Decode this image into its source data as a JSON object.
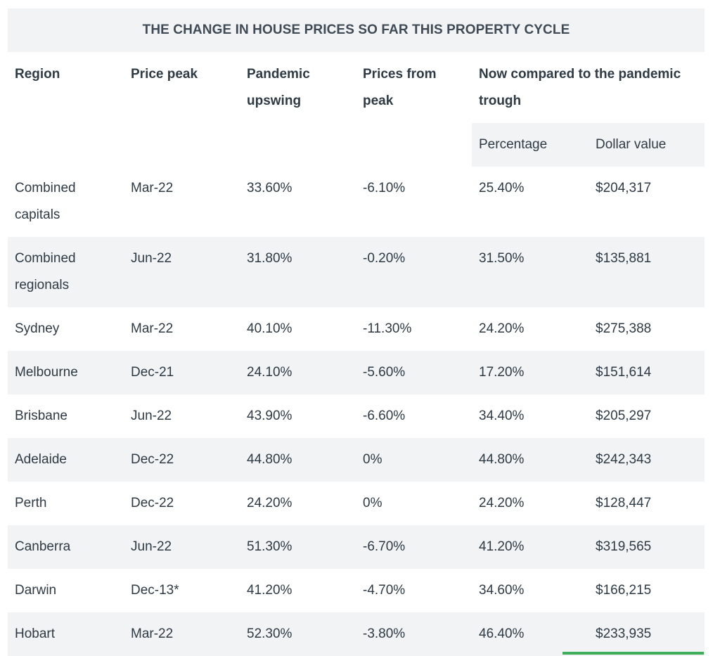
{
  "table_title": "THE CHANGE IN HOUSE PRICES SO FAR THIS PROPERTY CYCLE",
  "headers": {
    "region": "Region",
    "price_peak": "Price peak",
    "pandemic_upswing": "Pandemic upswing",
    "prices_from_peak": "Prices from peak",
    "now_compared": "Now compared to the pandemic trough",
    "percentage": "Percentage",
    "dollar_value": "Dollar value"
  },
  "rows": [
    {
      "region": "Combined capitals",
      "price_peak": "Mar-22",
      "upswing": "33.60%",
      "from_peak": "-6.10%",
      "percentage": "25.40%",
      "dollar": "$204,317"
    },
    {
      "region": "Combined regionals",
      "price_peak": "Jun-22",
      "upswing": "31.80%",
      "from_peak": "-0.20%",
      "percentage": "31.50%",
      "dollar": "$135,881"
    },
    {
      "region": "Sydney",
      "price_peak": "Mar-22",
      "upswing": "40.10%",
      "from_peak": "-11.30%",
      "percentage": "24.20%",
      "dollar": "$275,388"
    },
    {
      "region": "Melbourne",
      "price_peak": "Dec-21",
      "upswing": "24.10%",
      "from_peak": "-5.60%",
      "percentage": "17.20%",
      "dollar": "$151,614"
    },
    {
      "region": "Brisbane",
      "price_peak": "Jun-22",
      "upswing": "43.90%",
      "from_peak": "-6.60%",
      "percentage": "34.40%",
      "dollar": "$205,297"
    },
    {
      "region": "Adelaide",
      "price_peak": "Dec-22",
      "upswing": "44.80%",
      "from_peak": "0%",
      "percentage": "44.80%",
      "dollar": "$242,343"
    },
    {
      "region": "Perth",
      "price_peak": "Dec-22",
      "upswing": "24.20%",
      "from_peak": "0%",
      "percentage": "24.20%",
      "dollar": "$128,447"
    },
    {
      "region": "Canberra",
      "price_peak": "Jun-22",
      "upswing": "51.30%",
      "from_peak": "-6.70%",
      "percentage": "41.20%",
      "dollar": "$319,565"
    },
    {
      "region": "Darwin",
      "price_peak": "Dec-13*",
      "upswing": "41.20%",
      "from_peak": "-4.70%",
      "percentage": "34.60%",
      "dollar": "$166,215"
    },
    {
      "region": "Hobart",
      "price_peak": "Mar-22",
      "upswing": "52.30%",
      "from_peak": "-3.80%",
      "percentage": "46.40%",
      "dollar": "$233,935"
    }
  ],
  "colors": {
    "stripe": "#f1f3f5",
    "text": "#2e3a44",
    "accent_bar": "#3fae5b"
  }
}
